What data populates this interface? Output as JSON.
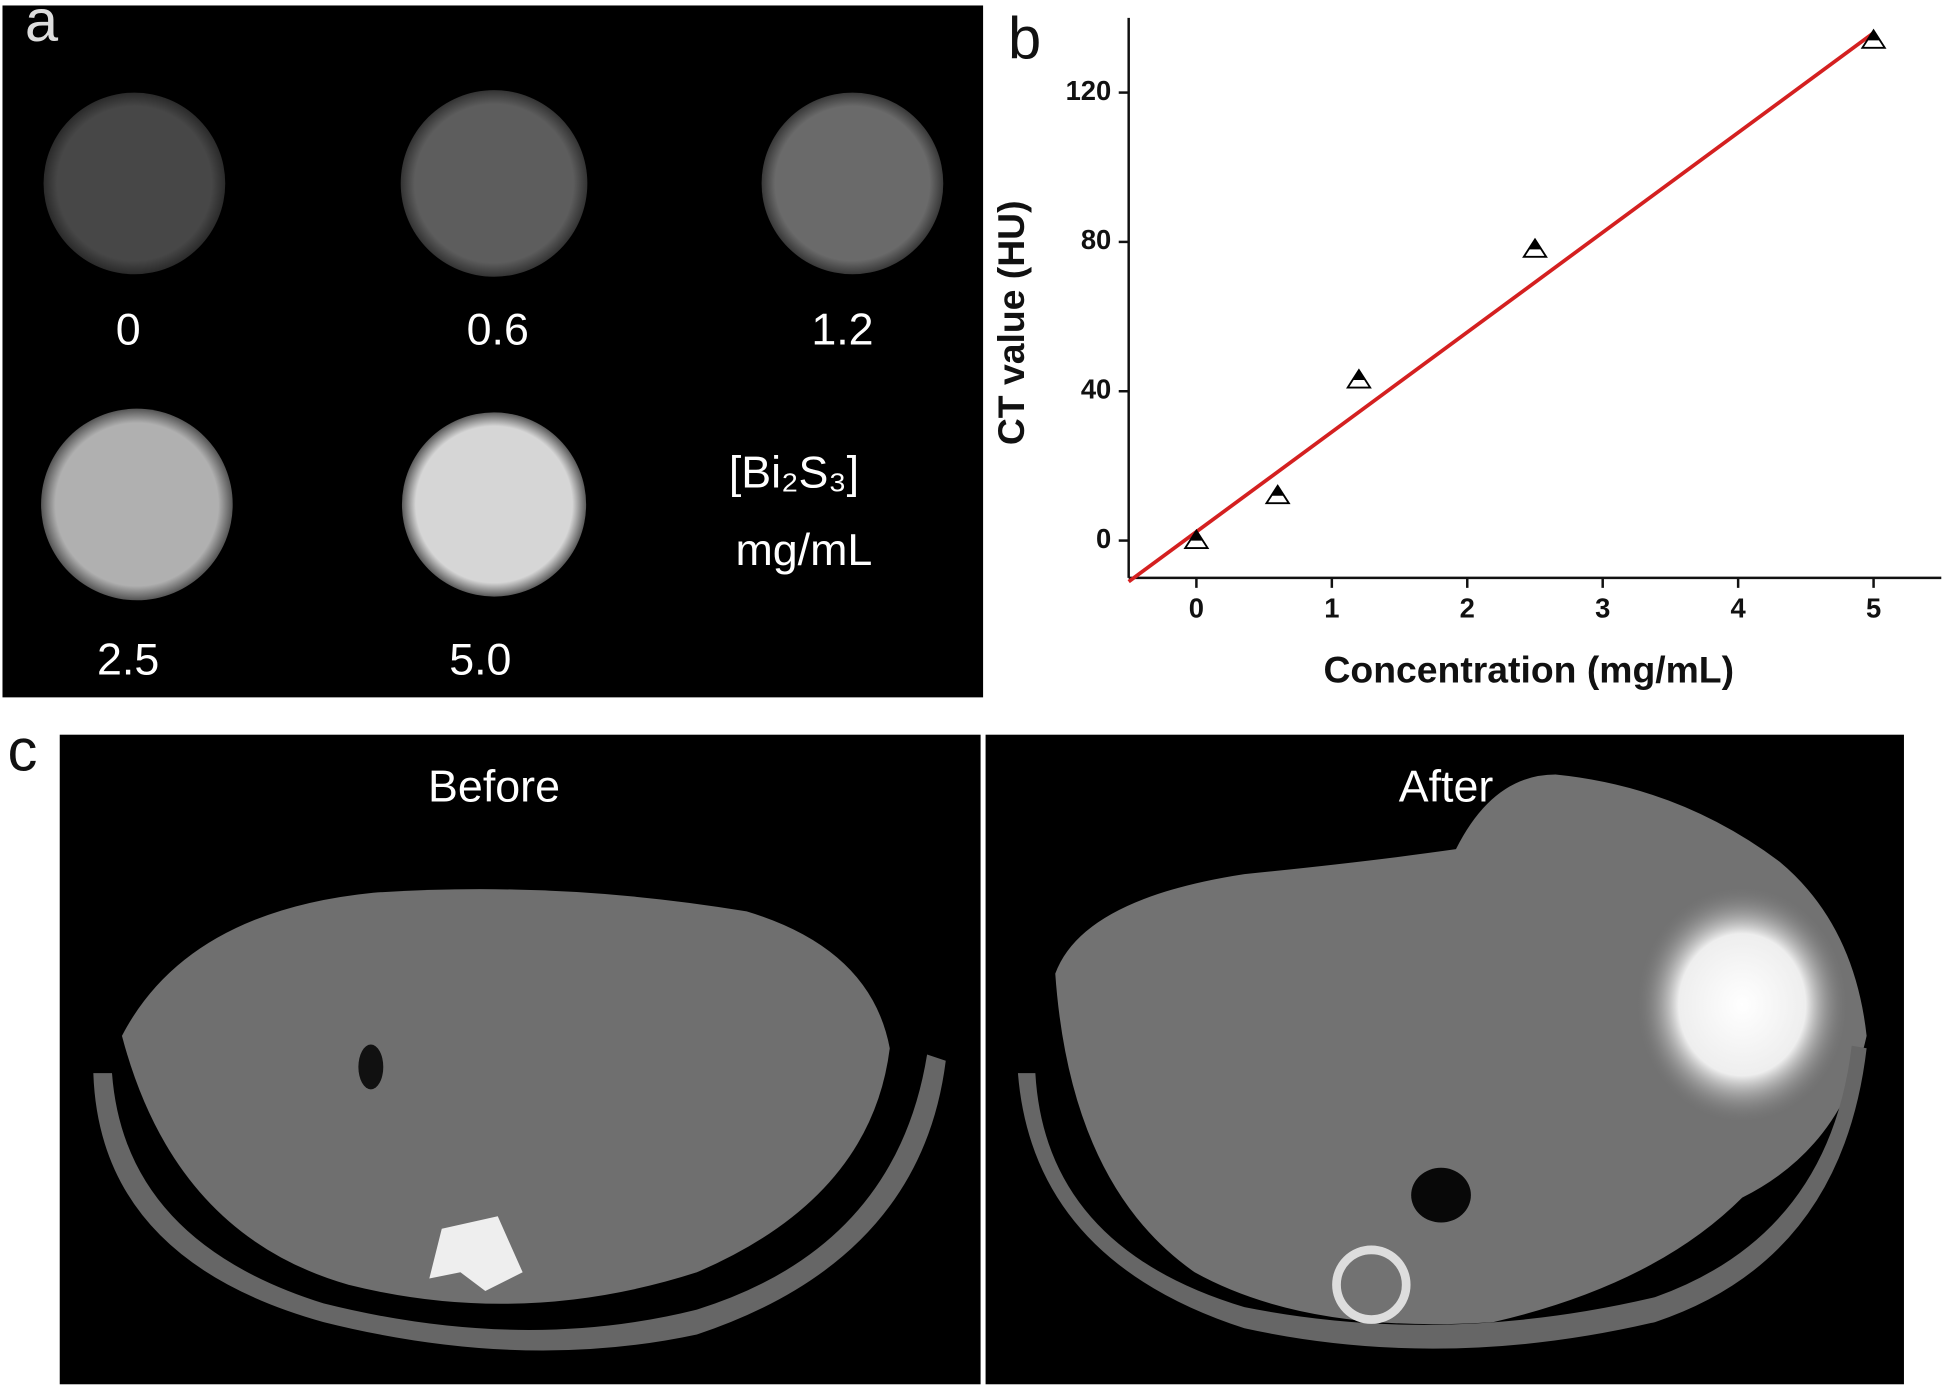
{
  "panel_a": {
    "label": "a",
    "concentrations": [
      "0",
      "0.6",
      "1.2",
      "2.5",
      "5.0"
    ],
    "compound": "[Bi₂S₃]",
    "unit": "mg/mL"
  },
  "panel_b": {
    "label": "b"
  },
  "panel_c": {
    "label": "c",
    "images": [
      "Before",
      "After"
    ]
  },
  "chart_data": {
    "type": "scatter",
    "x_label": "Concentration (mg/mL)",
    "y_label": "CT value (HU)",
    "x": [
      0,
      0.6,
      1.2,
      2.5,
      5
    ],
    "values": [
      0,
      12,
      43,
      78,
      134
    ],
    "color": "#000000",
    "fit_line": {
      "x": [
        -0.5,
        5
      ],
      "values": [
        -11,
        136
      ],
      "color": "#d42020"
    },
    "xlim": [
      -0.5,
      5.5
    ],
    "ylim": [
      -10,
      140
    ],
    "xticks": [
      0,
      1,
      2,
      3,
      4,
      5
    ],
    "yticks": [
      0,
      40,
      80,
      120
    ]
  }
}
